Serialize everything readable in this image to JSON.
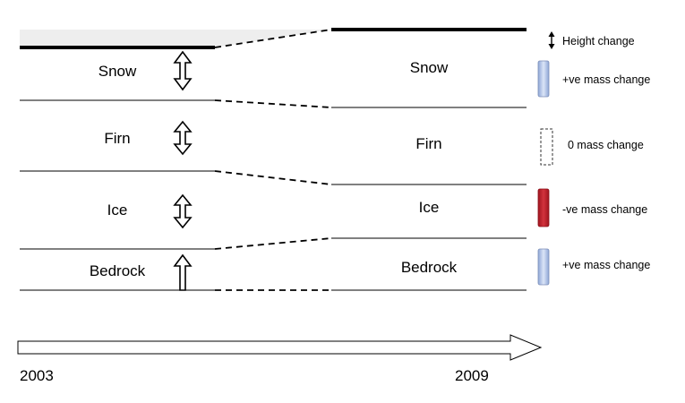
{
  "layers_2003": [
    "Snow",
    "Firn",
    "Ice",
    "Bedrock"
  ],
  "layers_2009": [
    "Snow",
    "Firn",
    "Ice",
    "Bedrock"
  ],
  "legend": {
    "height_change": "Height change",
    "positive_mass": "+ve mass change",
    "zero_mass": "0 mass change",
    "negative_mass": "-ve mass change",
    "positive_mass_bedrock": "+ve mass change"
  },
  "timeline": {
    "start_year": "2003",
    "end_year": "2009"
  },
  "colors": {
    "positive_fill": "#c6d4ee",
    "negative_fill": "#c0202a",
    "surface_band": "#eeeeee",
    "line": "#000000"
  }
}
